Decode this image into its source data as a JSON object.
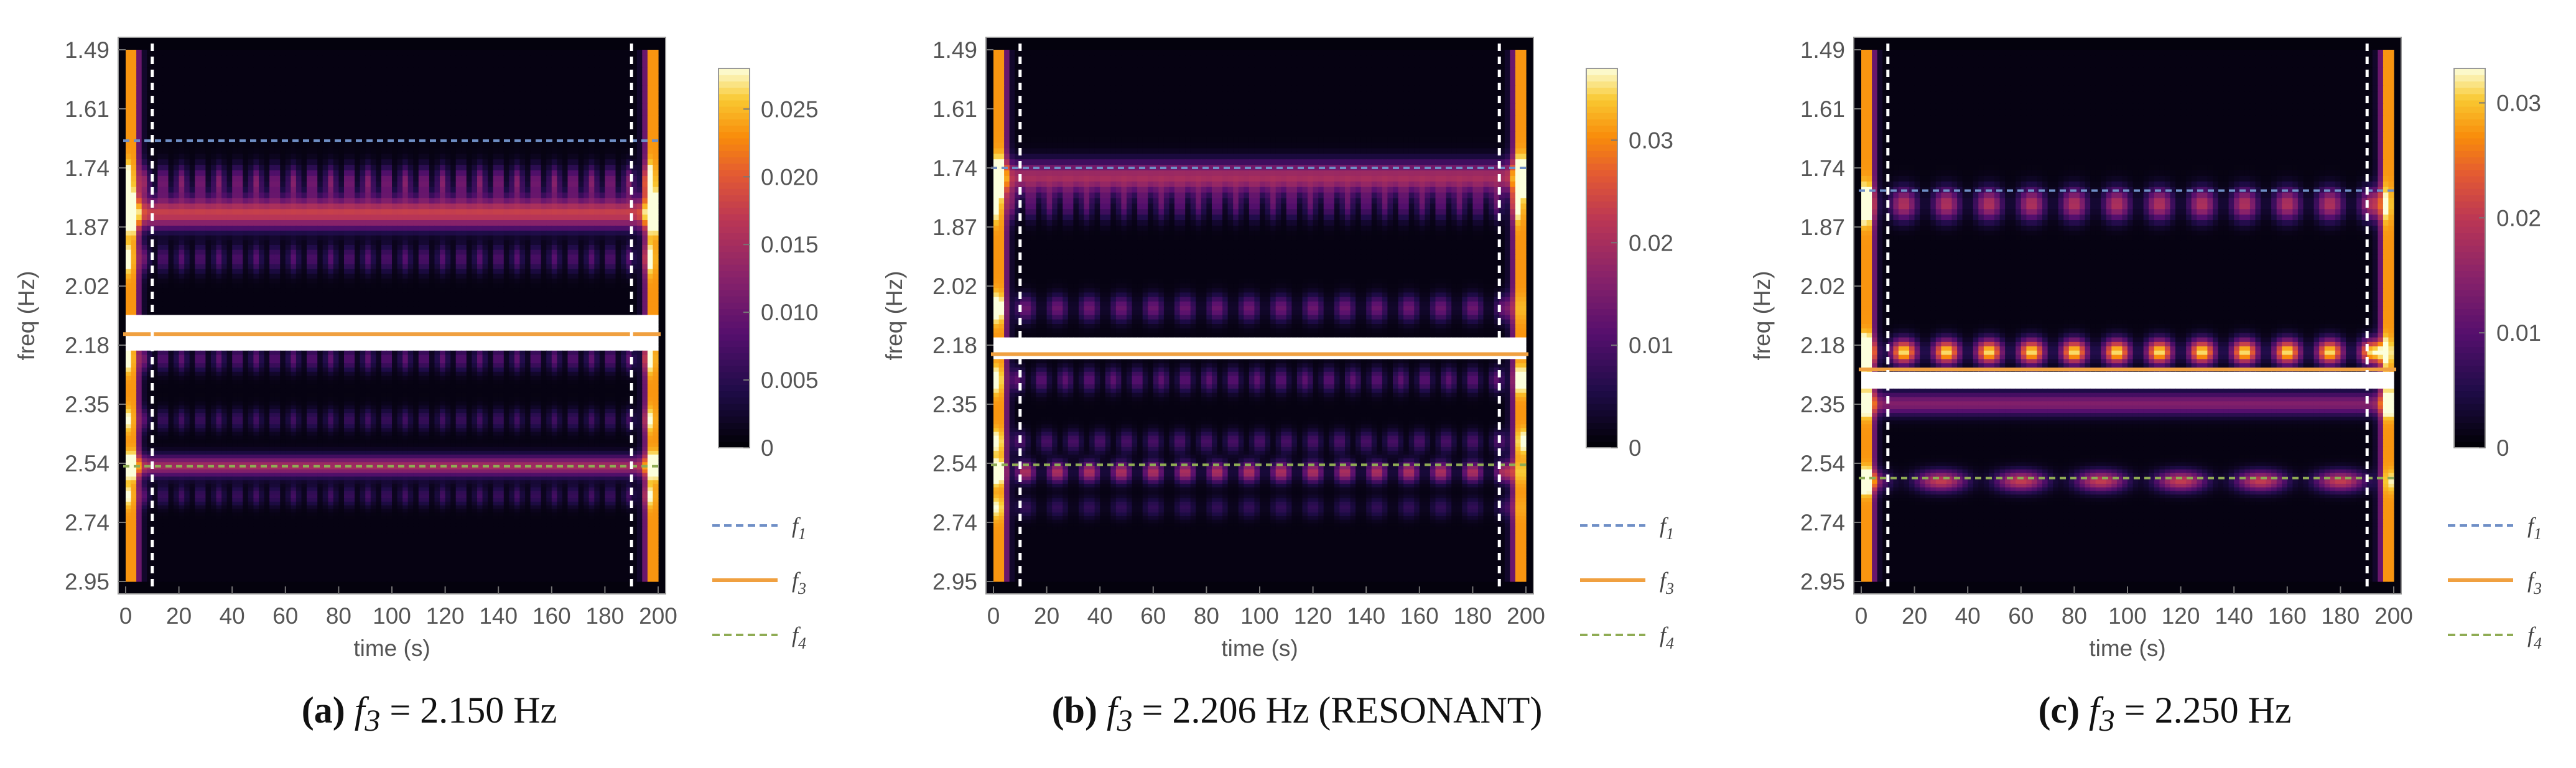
{
  "figure": {
    "panels": [
      {
        "label": "(a)",
        "caption_math": "f3 = 2.150 Hz",
        "f3_value": "2.150 Hz",
        "note": ""
      },
      {
        "label": "(b)",
        "caption_math": "f3 = 2.206 Hz",
        "f3_value": "2.206 Hz",
        "note": "(RESONANT)"
      },
      {
        "label": "(c)",
        "caption_math": "f3 = 2.250 Hz",
        "f3_value": "2.250 Hz",
        "note": ""
      }
    ]
  },
  "chart_data": [
    {
      "type": "heatmap",
      "title": "",
      "xlabel": "time (s)",
      "ylabel": "freq (Hz)",
      "xlim": [
        0,
        200
      ],
      "x_ticks": [
        0,
        20,
        40,
        60,
        80,
        100,
        120,
        140,
        160,
        180,
        200
      ],
      "y_tick_labels": [
        "1.49",
        "1.61",
        "1.74",
        "1.87",
        "2.02",
        "2.18",
        "2.35",
        "2.54",
        "2.74",
        "2.95"
      ],
      "colormap": "inferno (black-purple-orange-white)",
      "colorbar_ticks": [
        "0",
        "0.005",
        "0.010",
        "0.015",
        "0.020",
        "0.025"
      ],
      "colorbar_max": 0.028,
      "vertical_markers_s": [
        10,
        190
      ],
      "lines": [
        {
          "name": "f1",
          "freq_hz": 1.68,
          "style": "dashed",
          "color": "#6f8fc6"
        },
        {
          "name": "f3",
          "freq_hz": 2.15,
          "style": "solid",
          "color": "#f0a040"
        },
        {
          "name": "f4",
          "freq_hz": 2.55,
          "style": "dashed",
          "color": "#8fac54"
        }
      ],
      "bands": [
        {
          "center_hz": 1.77,
          "intensity": 0.4,
          "modulation_period_s": 7
        },
        {
          "center_hz": 1.84,
          "intensity": 0.6,
          "modulation_period_s": 0
        },
        {
          "center_hz": 1.95,
          "intensity": 0.28,
          "modulation_period_s": 7
        },
        {
          "center_hz": 2.22,
          "intensity": 0.3,
          "modulation_period_s": 7
        },
        {
          "center_hz": 2.4,
          "intensity": 0.22,
          "modulation_period_s": 7
        },
        {
          "center_hz": 2.55,
          "intensity": 0.5,
          "modulation_period_s": 0
        },
        {
          "center_hz": 2.65,
          "intensity": 0.22,
          "modulation_period_s": 7
        }
      ],
      "gap_hz": [
        2.1,
        2.2
      ],
      "legend": [
        "f1",
        "f3",
        "f4"
      ],
      "legend_position": "right"
    },
    {
      "type": "heatmap",
      "title": "",
      "xlabel": "time (s)",
      "ylabel": "freq (Hz)",
      "xlim": [
        0,
        200
      ],
      "x_ticks": [
        0,
        20,
        40,
        60,
        80,
        100,
        120,
        140,
        160,
        180,
        200
      ],
      "y_tick_labels": [
        "1.49",
        "1.61",
        "1.74",
        "1.87",
        "2.02",
        "2.18",
        "2.35",
        "2.54",
        "2.74",
        "2.95"
      ],
      "colormap": "inferno (black-purple-orange-white)",
      "colorbar_ticks": [
        "0",
        "0.01",
        "0.02",
        "0.03"
      ],
      "colorbar_max": 0.037,
      "vertical_markers_s": [
        10,
        190
      ],
      "lines": [
        {
          "name": "f1",
          "freq_hz": 1.74,
          "style": "dashed",
          "color": "#6f8fc6"
        },
        {
          "name": "f3",
          "freq_hz": 2.206,
          "style": "solid",
          "color": "#f0a040"
        },
        {
          "name": "f4",
          "freq_hz": 2.545,
          "style": "dashed",
          "color": "#8fac54"
        }
      ],
      "bands": [
        {
          "center_hz": 1.76,
          "intensity": 0.5,
          "modulation_period_s": 0
        },
        {
          "center_hz": 1.82,
          "intensity": 0.3,
          "modulation_period_s": 7
        },
        {
          "center_hz": 2.08,
          "intensity": 0.35,
          "modulation_period_s": 12
        },
        {
          "center_hz": 2.28,
          "intensity": 0.3,
          "modulation_period_s": 9
        },
        {
          "center_hz": 2.47,
          "intensity": 0.25,
          "modulation_period_s": 10
        },
        {
          "center_hz": 2.57,
          "intensity": 0.55,
          "modulation_period_s": 12
        },
        {
          "center_hz": 2.69,
          "intensity": 0.18,
          "modulation_period_s": 12
        }
      ],
      "gap_hz": [
        2.16,
        2.22
      ],
      "legend": [
        "f1",
        "f3",
        "f4"
      ],
      "legend_position": "right"
    },
    {
      "type": "heatmap",
      "title": "",
      "xlabel": "time (s)",
      "ylabel": "freq (Hz)",
      "xlim": [
        0,
        200
      ],
      "x_ticks": [
        0,
        20,
        40,
        60,
        80,
        100,
        120,
        140,
        160,
        180,
        200
      ],
      "y_tick_labels": [
        "1.49",
        "1.61",
        "1.74",
        "1.87",
        "2.02",
        "2.18",
        "2.35",
        "2.54",
        "2.74",
        "2.95"
      ],
      "colormap": "inferno (black-purple-orange-white)",
      "colorbar_ticks": [
        "0",
        "0.01",
        "0.02",
        "0.03"
      ],
      "colorbar_max": 0.033,
      "vertical_markers_s": [
        10,
        190
      ],
      "lines": [
        {
          "name": "f1",
          "freq_hz": 1.79,
          "style": "dashed",
          "color": "#6f8fc6"
        },
        {
          "name": "f3",
          "freq_hz": 2.25,
          "style": "solid",
          "color": "#f0a040"
        },
        {
          "name": "f4",
          "freq_hz": 2.59,
          "style": "dashed",
          "color": "#8fac54"
        }
      ],
      "bands": [
        {
          "center_hz": 1.82,
          "intensity": 0.55,
          "modulation_period_s": 16
        },
        {
          "center_hz": 2.2,
          "intensity": 0.95,
          "modulation_period_s": 16
        },
        {
          "center_hz": 2.35,
          "intensity": 0.4,
          "modulation_period_s": 0
        },
        {
          "center_hz": 2.6,
          "intensity": 0.6,
          "modulation_period_s": 30
        }
      ],
      "gap_hz": [
        2.26,
        2.31
      ],
      "legend": [
        "f1",
        "f3",
        "f4"
      ],
      "legend_position": "right"
    }
  ]
}
